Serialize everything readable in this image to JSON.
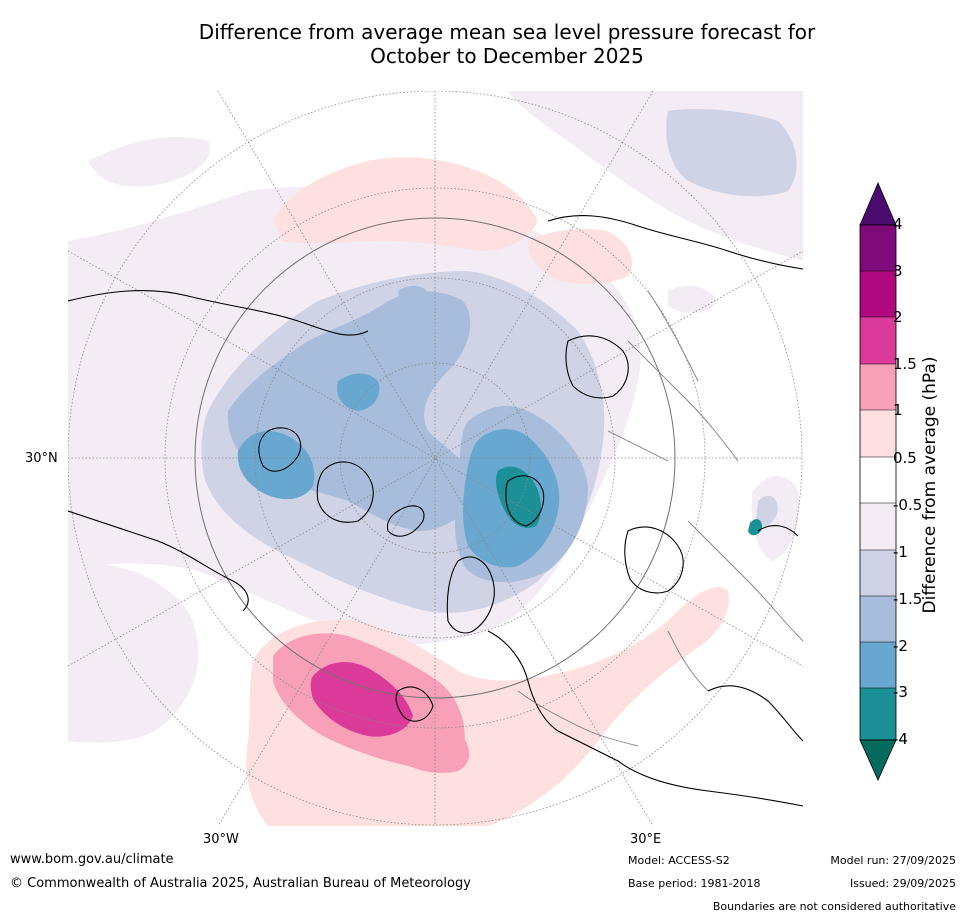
{
  "title": {
    "line1": "Difference from average mean sea level pressure forecast for",
    "line2": "October to December 2025"
  },
  "map": {
    "lat_label": "30°N",
    "lon_labels": [
      "30°W",
      "30°E"
    ],
    "colors": {
      "land_line": "#000000",
      "border_line": "#808080",
      "grid_line": "#888888"
    }
  },
  "legend": {
    "title": "Difference from average (hPa)",
    "ticks": [
      "4",
      "3",
      "2",
      "1.5",
      "1",
      "0.5",
      "-0.5",
      "-1",
      "-1.5",
      "-2",
      "-3",
      "-4"
    ],
    "colors": {
      "above_4": "#4b0a6e",
      "3_to_4": "#7f0a7a",
      "2_to_3": "#b0087f",
      "1.5_to_2": "#dc3a9a",
      "1_to_1.5": "#f7a0b8",
      "0.5_to_1": "#fde0df",
      "-0.5_to_0.5": "#ffffff",
      "-1_to_-0.5": "#f3ecf5",
      "-1.5_to_-1": "#d0d2e6",
      "-2_to_-1.5": "#a8bddb",
      "-3_to_-2": "#68a7d0",
      "-4_to_-3": "#1b9096",
      "below_-4": "#026b5d"
    }
  },
  "footer": {
    "url": "www.bom.gov.au/climate",
    "copyright": "© Commonwealth of Australia 2025, Australian Bureau of Meteorology",
    "model": "Model: ACCESS-S2",
    "base_period": "Base period: 1981-2018",
    "model_run": "Model run: 27/09/2025",
    "issued": "Issued: 29/09/2025",
    "disclaimer": "Boundaries are not considered authoritative"
  }
}
